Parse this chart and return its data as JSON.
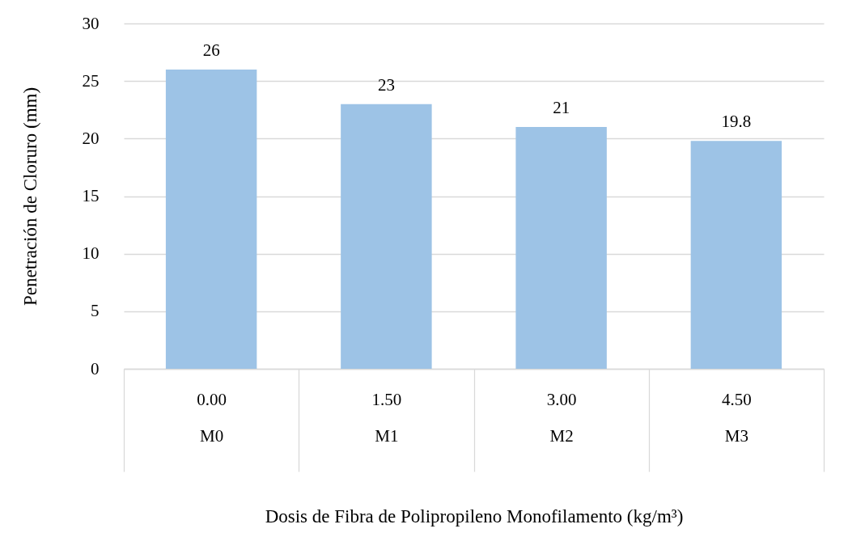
{
  "chart_data": {
    "type": "bar",
    "xlabel": "Dosis de Fibra de Polipropileno Monofilamento (kg/m³)",
    "ylabel": "Penetración de Cloruro (mm)",
    "categories": [
      "0.00\nM0",
      "1.50\nM1",
      "3.00\nM2",
      "4.50\nM3"
    ],
    "values": [
      26,
      23,
      21,
      19.8
    ],
    "color": "#9dc3e6",
    "ylim": [
      0,
      30
    ],
    "yticks": [
      0,
      5,
      10,
      15,
      20,
      25,
      30
    ],
    "grid": "y",
    "data_labels": true
  }
}
